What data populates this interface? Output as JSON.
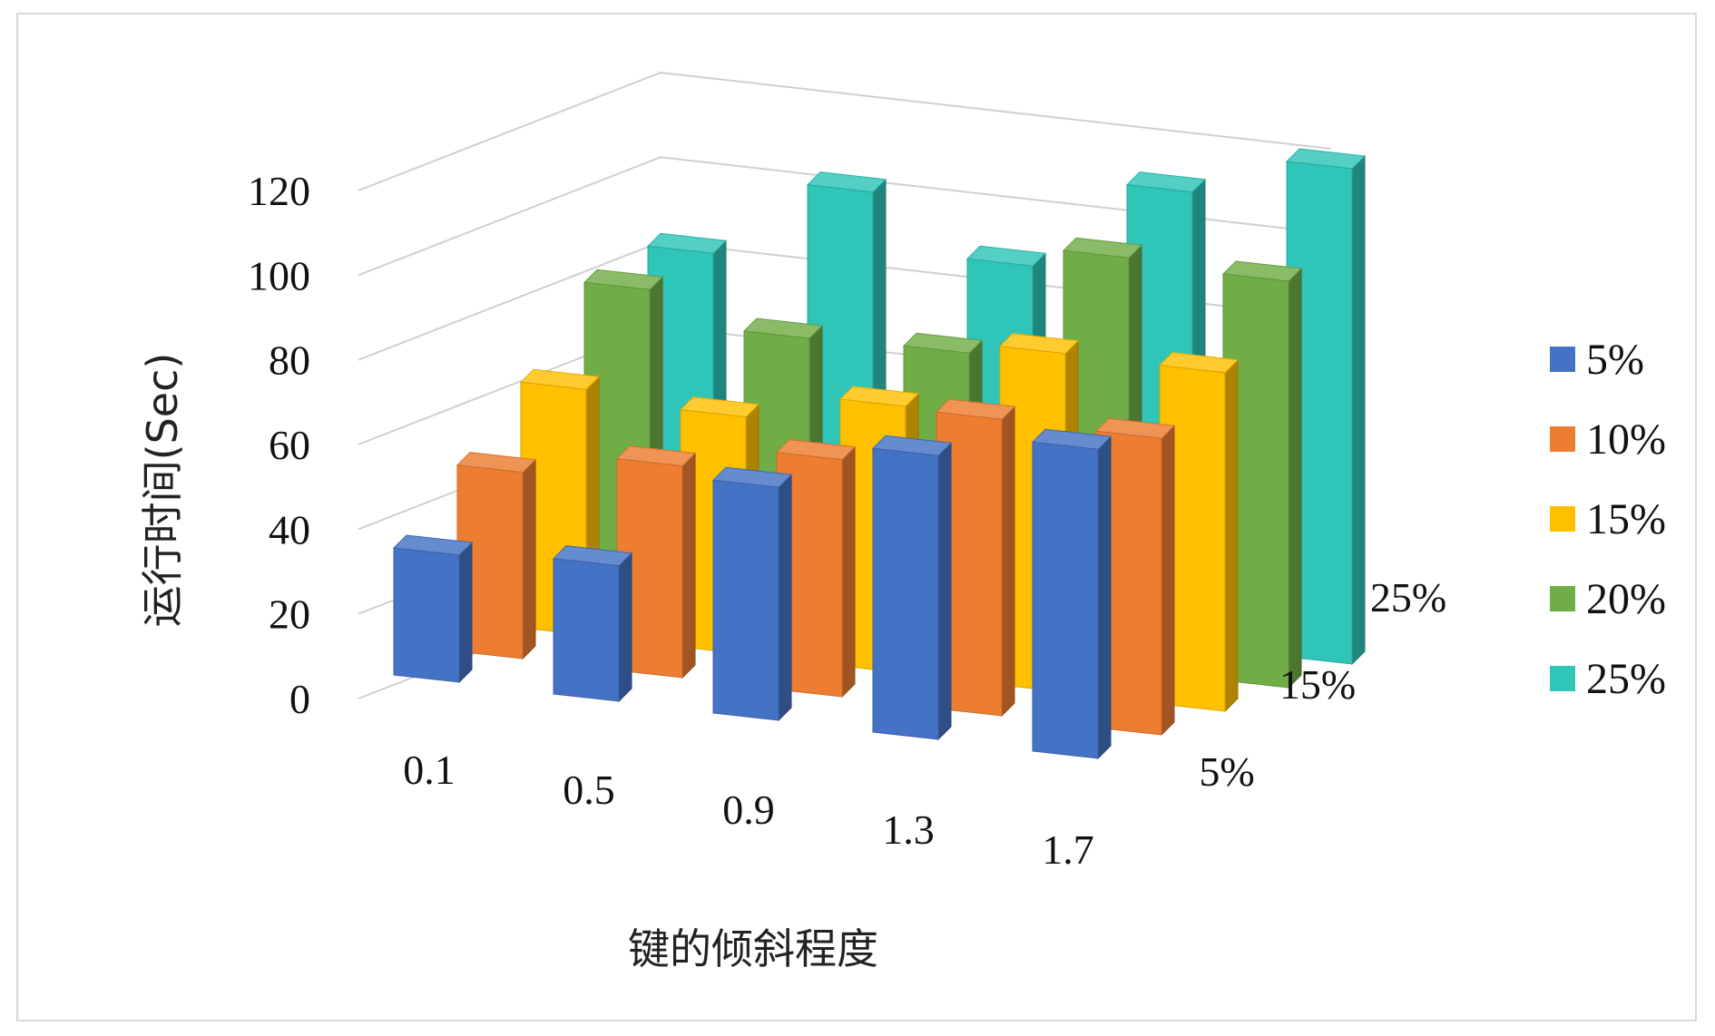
{
  "chart_data": {
    "type": "bar",
    "subtype": "3d-column",
    "title": "",
    "xlabel": "键的倾斜程度",
    "ylabel": "运行时间(Sec)",
    "categories": [
      "0.1",
      "0.5",
      "0.9",
      "1.3",
      "1.7"
    ],
    "depth_labels": [
      "5%",
      "15%",
      "25%"
    ],
    "yticks": [
      "0",
      "20",
      "40",
      "60",
      "80",
      "100",
      "120"
    ],
    "ylim": [
      0,
      120
    ],
    "grid": true,
    "legend_position": "right",
    "series": [
      {
        "name": "5%",
        "color": "#4472C4",
        "values": [
          30,
          32,
          55,
          67,
          73
        ]
      },
      {
        "name": "10%",
        "color": "#ED7D31",
        "values": [
          44,
          50,
          56,
          70,
          70
        ]
      },
      {
        "name": "15%",
        "color": "#FFC000",
        "values": [
          58,
          56,
          63,
          80,
          80
        ]
      },
      {
        "name": "20%",
        "color": "#70AD47",
        "values": [
          76,
          69,
          70,
          97,
          96
        ]
      },
      {
        "name": "25%",
        "color": "#2FC5B8",
        "values": [
          79,
          98,
          85,
          107,
          117
        ]
      }
    ]
  }
}
